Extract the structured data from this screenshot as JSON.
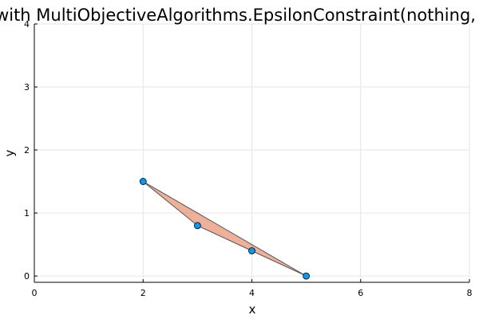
{
  "chart_data": {
    "type": "scatter",
    "title": "with MultiObjectiveAlgorithms.EpsilonConstraint(nothing,",
    "xlabel": "x",
    "ylabel": "y",
    "xlim": [
      0,
      8
    ],
    "ylim": [
      -0.1,
      4
    ],
    "xticks": [
      0,
      2,
      4,
      6,
      8
    ],
    "yticks": [
      0,
      1,
      2,
      3,
      4
    ],
    "grid": true,
    "legend": "none",
    "series": [
      {
        "x": [
          2,
          3,
          4,
          5
        ],
        "y": [
          1.5,
          0.8,
          0.4,
          0
        ],
        "color": "#009af9"
      }
    ],
    "polygon": {
      "x": [
        2,
        5,
        2
      ],
      "y": [
        1.5,
        0,
        1.5
      ],
      "fill": "#e26f46",
      "fill_opacity": 0.55,
      "stroke": "#555555"
    }
  }
}
